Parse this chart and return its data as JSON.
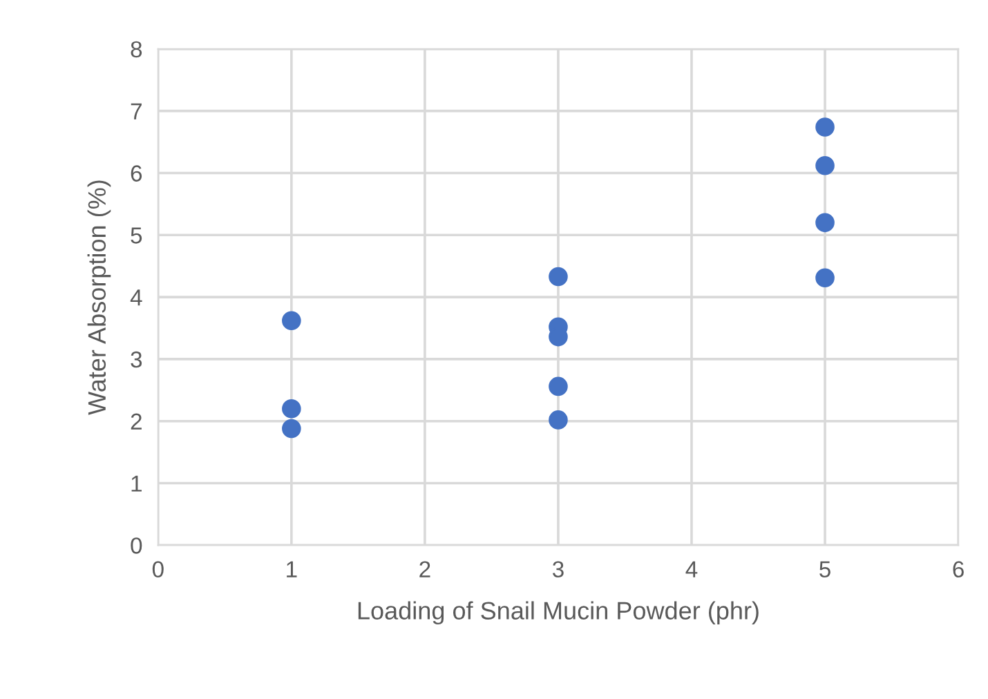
{
  "chart_data": {
    "type": "scatter",
    "xlabel": "Loading of Snail Mucin Powder (phr)",
    "ylabel": "Water Absorption (%)",
    "x": [
      1,
      1,
      1,
      3,
      3,
      3,
      3,
      3,
      5,
      5,
      5,
      5
    ],
    "series": [
      {
        "color": "#4472c4",
        "values": [
          3.62,
          2.2,
          1.88,
          4.33,
          3.52,
          3.36,
          2.56,
          2.02,
          6.74,
          6.12,
          5.2,
          4.31
        ]
      }
    ],
    "xlim": [
      0,
      6
    ],
    "xticks": [
      0,
      1,
      2,
      3,
      4,
      5,
      6
    ],
    "ylim": [
      0,
      8
    ],
    "yticks": [
      0,
      1,
      2,
      3,
      4,
      5,
      6,
      7,
      8
    ],
    "grid": true,
    "marker": "circle"
  }
}
